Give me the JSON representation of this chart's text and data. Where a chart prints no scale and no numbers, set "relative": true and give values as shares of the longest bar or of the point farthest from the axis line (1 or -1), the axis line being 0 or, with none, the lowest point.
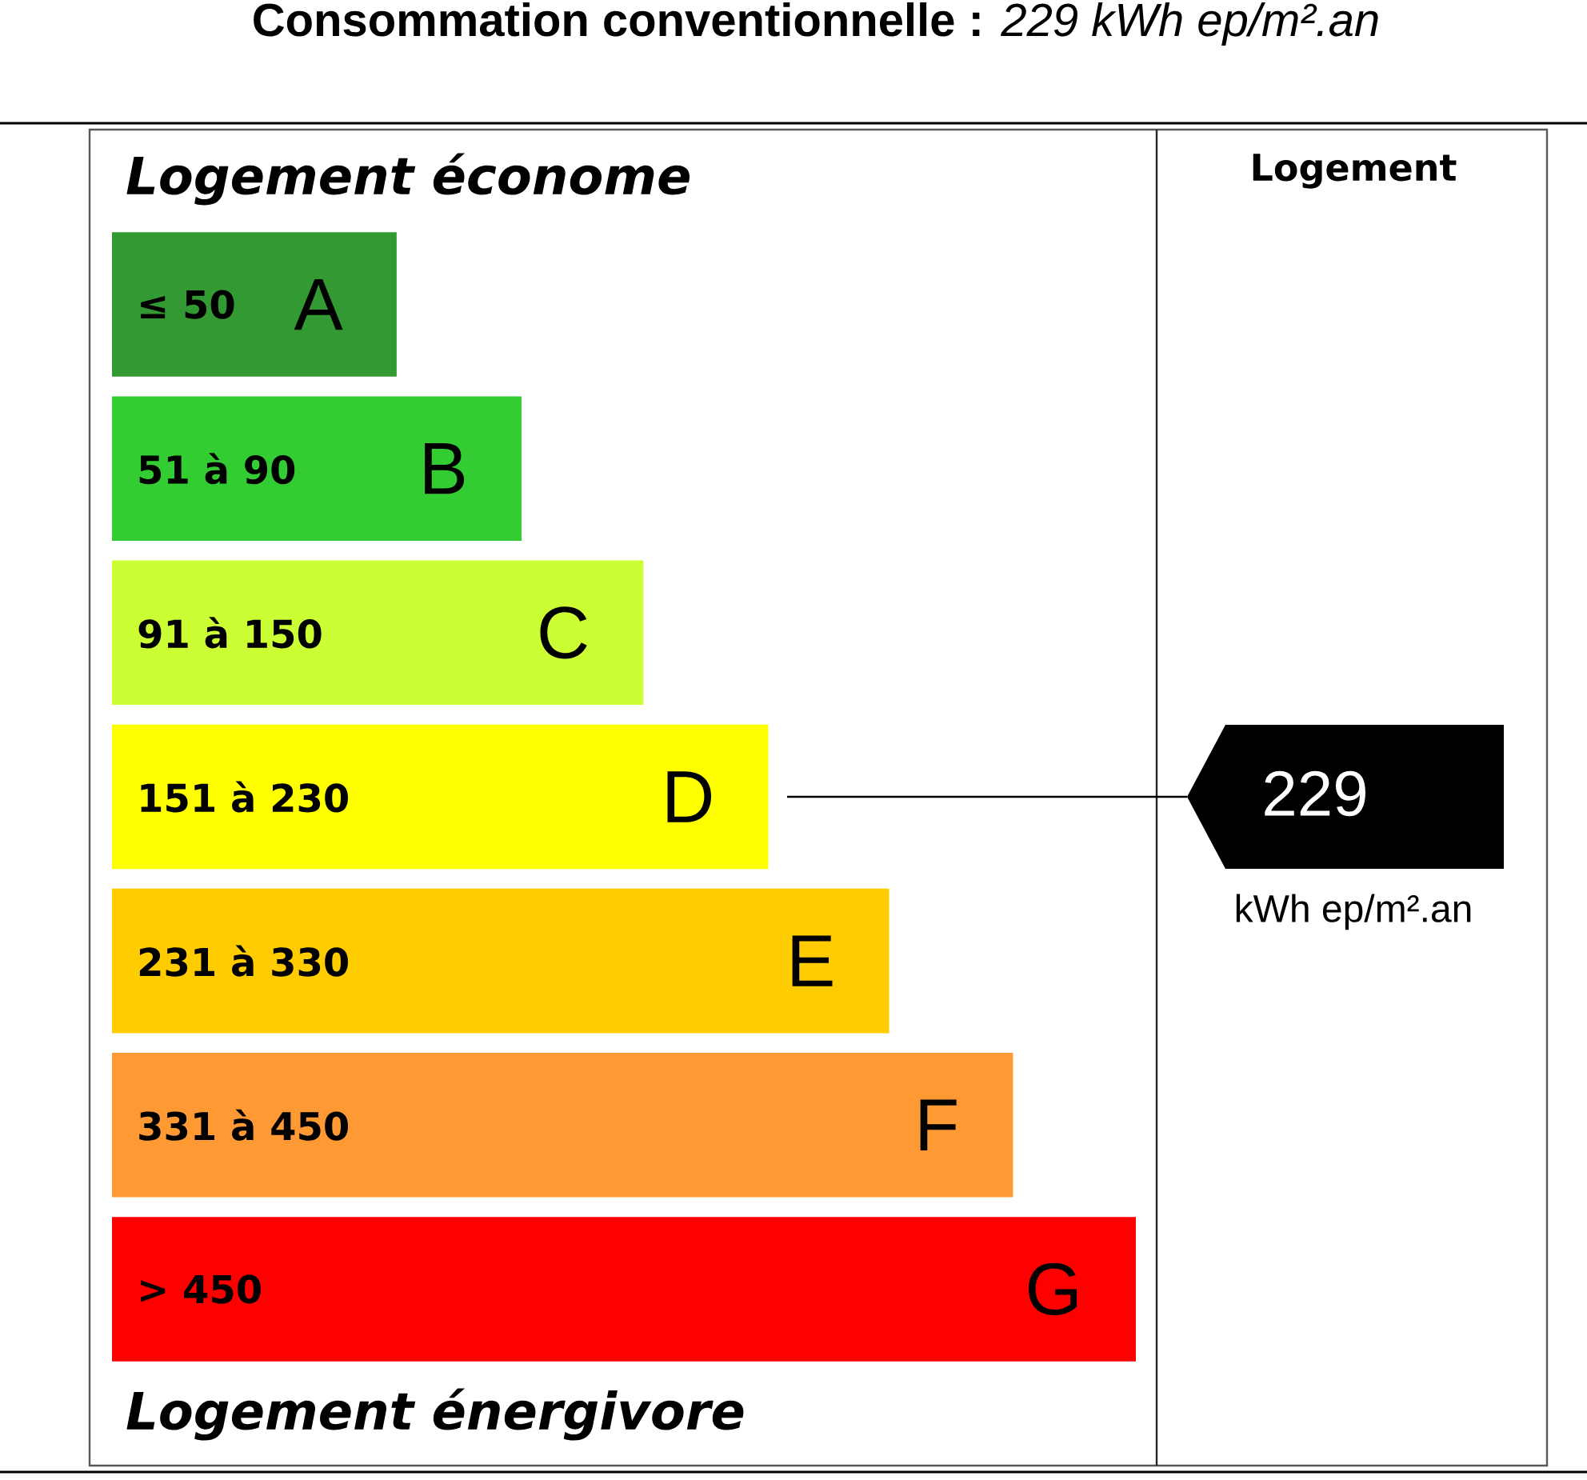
{
  "chart_data": {
    "type": "bar",
    "orientation": "horizontal",
    "relative": true,
    "title": "**Consommation conventionnelle :** *229  kWh ep/m².an*",
    "categories": [
      "A",
      "B",
      "C",
      "D",
      "E",
      "F",
      "G"
    ],
    "values": [
      0.278,
      0.4,
      0.519,
      0.641,
      0.759,
      0.88,
      1
    ],
    "colors": [
      "#339933",
      "#33cc33",
      "#ccff33",
      "#ffff00",
      "#ffcc00",
      "#ff9933",
      "#ff0000"
    ],
    "annotations": [
      "≤ 50",
      "51 à 90",
      "91 à 150",
      "151 à 230",
      "231 à 330",
      "331 à 450",
      "> 450",
      "Logement économe",
      "Logement énergivore",
      "Logement",
      "229",
      "kWh ep/m².an"
    ]
  }
}
